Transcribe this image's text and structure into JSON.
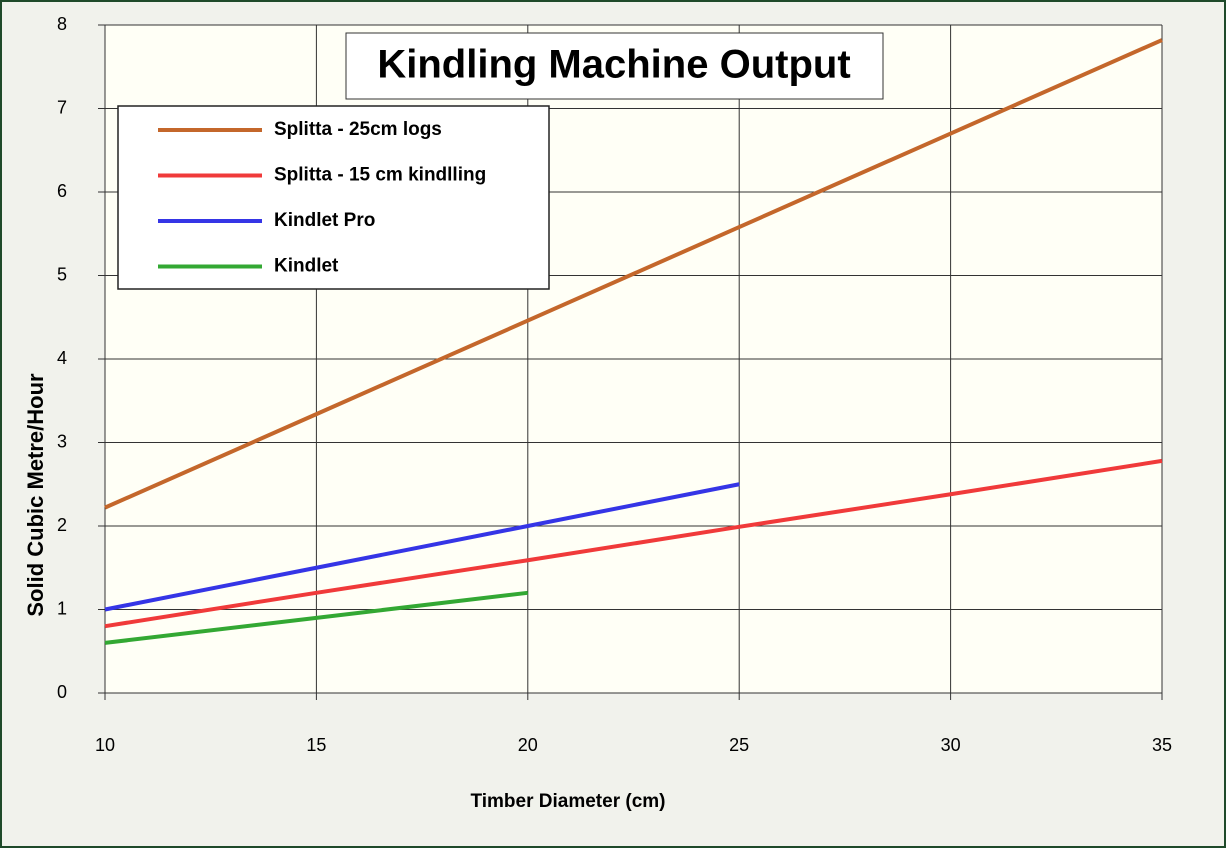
{
  "chart_data": {
    "type": "line",
    "title": "Kindling Machine Output",
    "xlabel": "Timber Diameter (cm)",
    "ylabel": "Solid Cubic Metre/Hour",
    "x": [
      10,
      15,
      20,
      25,
      30,
      35
    ],
    "series": [
      {
        "name": "Splitta - 25cm logs",
        "color": "#c4672b",
        "values": [
          2.22,
          3.34,
          4.46,
          5.58,
          6.7,
          7.82
        ]
      },
      {
        "name": "Splitta - 15 cm kindlling",
        "color": "#f03a3a",
        "values": [
          0.8,
          1.2,
          1.59,
          1.99,
          2.38,
          2.78
        ]
      },
      {
        "name": "Kindlet Pro",
        "color": "#3535e6",
        "values": [
          1.0,
          1.5,
          2.0,
          2.5,
          null,
          null
        ]
      },
      {
        "name": "Kindlet",
        "color": "#33a833",
        "values": [
          0.6,
          0.9,
          1.2,
          null,
          null,
          null
        ]
      }
    ],
    "xlim": [
      10,
      35
    ],
    "ylim": [
      0,
      8
    ],
    "xticks": [
      10,
      15,
      20,
      25,
      30,
      35
    ],
    "yticks": [
      0,
      1,
      2,
      3,
      4,
      5,
      6,
      7,
      8
    ],
    "grid": true,
    "legend": "upper left"
  }
}
